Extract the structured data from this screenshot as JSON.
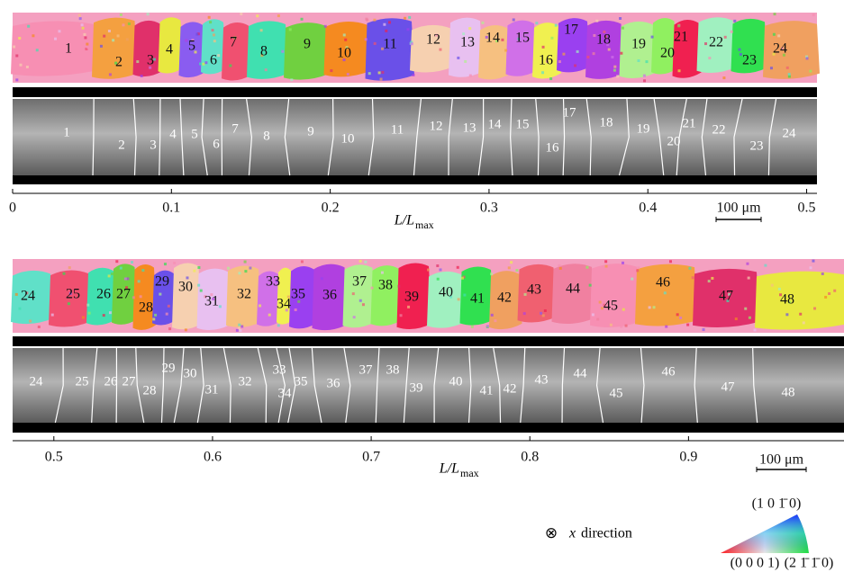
{
  "panels": [
    {
      "grain_labels": [
        "1",
        "2",
        "3",
        "4",
        "5",
        "6",
        "7",
        "8",
        "9",
        "10",
        "11",
        "12",
        "13",
        "14",
        "15",
        "16",
        "17",
        "18",
        "19",
        "20",
        "21",
        "22",
        "23",
        "24"
      ],
      "xlim": [
        0,
        0.5065
      ],
      "xticks": [
        0,
        0.1,
        0.2,
        0.3,
        0.4,
        0.5
      ],
      "x_label": "L/L",
      "x_label_sub": "max",
      "scale_bar": "100 μm"
    },
    {
      "grain_labels": [
        "24",
        "25",
        "26",
        "27",
        "28",
        "29",
        "30",
        "31",
        "32",
        "33",
        "34",
        "35",
        "36",
        "37",
        "38",
        "39",
        "40",
        "41",
        "42",
        "43",
        "44",
        "45",
        "46",
        "47",
        "48"
      ],
      "xlim": [
        0.474,
        0.998
      ],
      "xticks": [
        0.5,
        0.6,
        0.7,
        0.8,
        0.9
      ],
      "x_label": "L/L",
      "x_label_sub": "max",
      "scale_bar": "100 μm"
    }
  ],
  "legend": {
    "symbol": "⊗",
    "axis": "x",
    "text": "direction",
    "top_corner": "(1 0 1̄ 0)",
    "left_corner": "(0 0 0 1)",
    "right_corner": "(2 1̄ 1̄ 0)"
  }
}
